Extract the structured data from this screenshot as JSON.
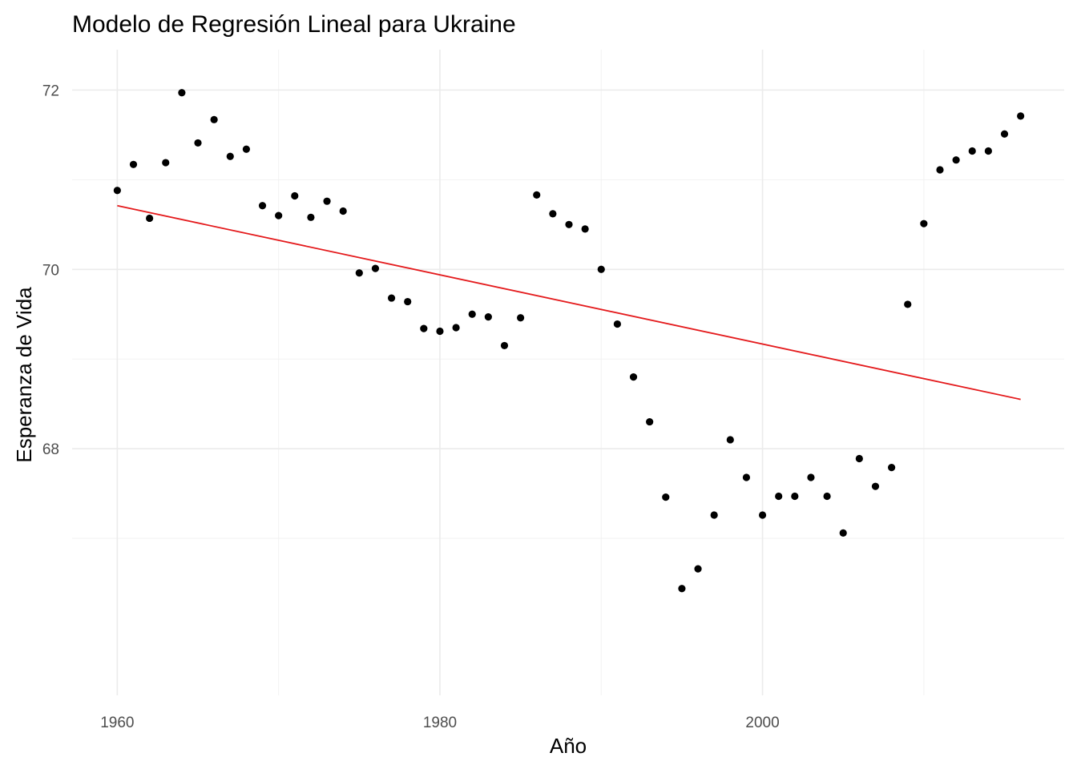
{
  "chart_data": {
    "type": "scatter",
    "title": "Modelo de Regresión Lineal para Ukraine",
    "xlabel": "Año",
    "ylabel": "Esperanza de  Vida",
    "xlim": [
      1957.2,
      2018.7
    ],
    "ylim": [
      65.25,
      72.45
    ],
    "x_ticks": [
      1960,
      1980,
      2000
    ],
    "y_ticks": [
      68,
      70,
      72
    ],
    "x_minor_ticks": [
      1970,
      1990,
      2010
    ],
    "y_minor_ticks": [
      67,
      69,
      71
    ],
    "grid": true,
    "colors": {
      "points": "#000000",
      "regression_line": "#e41a1c"
    },
    "series": [
      {
        "type": "points",
        "x": [
          1960,
          1961,
          1962,
          1963,
          1964,
          1965,
          1966,
          1967,
          1968,
          1969,
          1970,
          1971,
          1972,
          1973,
          1974,
          1975,
          1976,
          1977,
          1978,
          1979,
          1980,
          1981,
          1982,
          1983,
          1984,
          1985,
          1986,
          1987,
          1988,
          1989,
          1990,
          1991,
          1992,
          1993,
          1994,
          1995,
          1996,
          1997,
          1998,
          1999,
          2000,
          2001,
          2002,
          2003,
          2004,
          2005,
          2006,
          2007,
          2008,
          2009,
          2010,
          2011,
          2012,
          2013,
          2014,
          2015,
          2016
        ],
        "y": [
          70.88,
          71.17,
          70.57,
          71.19,
          71.97,
          71.41,
          71.67,
          71.26,
          71.34,
          70.71,
          70.6,
          70.82,
          70.58,
          70.76,
          70.65,
          69.96,
          70.01,
          69.68,
          69.64,
          69.34,
          69.31,
          69.35,
          69.5,
          69.47,
          69.15,
          69.46,
          70.83,
          70.62,
          70.5,
          70.45,
          70.0,
          69.39,
          68.8,
          68.3,
          67.46,
          66.44,
          66.66,
          67.26,
          68.1,
          67.68,
          67.26,
          67.47,
          67.47,
          67.68,
          67.47,
          67.06,
          67.89,
          67.58,
          67.79,
          69.61,
          70.51,
          71.11,
          71.22,
          71.32,
          71.32,
          71.51,
          71.71
        ]
      },
      {
        "type": "regression_line",
        "x": [
          1960,
          2016
        ],
        "y": [
          70.71,
          68.55
        ]
      }
    ]
  }
}
